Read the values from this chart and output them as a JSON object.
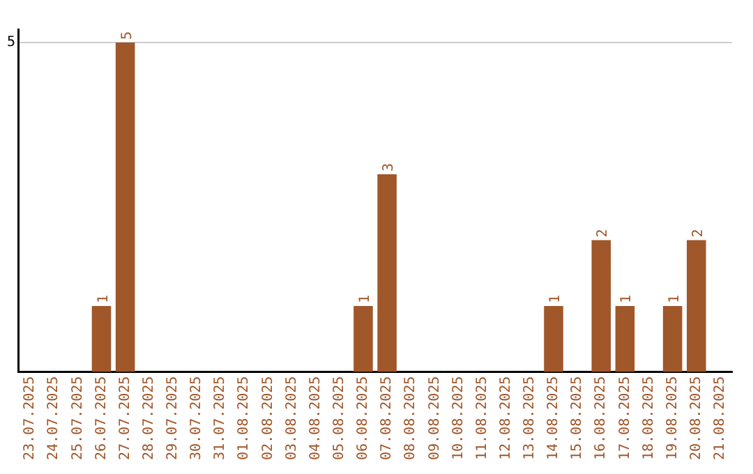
{
  "chart_data": {
    "type": "bar",
    "categories": [
      "23.07.2025",
      "24.07.2025",
      "25.07.2025",
      "26.07.2025",
      "27.07.2025",
      "28.07.2025",
      "29.07.2025",
      "30.07.2025",
      "31.07.2025",
      "01.08.2025",
      "02.08.2025",
      "03.08.2025",
      "04.08.2025",
      "05.08.2025",
      "06.08.2025",
      "07.08.2025",
      "08.08.2025",
      "09.08.2025",
      "10.08.2025",
      "11.08.2025",
      "12.08.2025",
      "13.08.2025",
      "14.08.2025",
      "15.08.2025",
      "16.08.2025",
      "17.08.2025",
      "18.08.2025",
      "19.08.2025",
      "20.08.2025",
      "21.08.2025"
    ],
    "values": [
      null,
      null,
      null,
      1,
      5,
      null,
      null,
      null,
      null,
      null,
      null,
      null,
      null,
      null,
      1,
      3,
      null,
      null,
      null,
      null,
      null,
      null,
      1,
      null,
      2,
      1,
      null,
      1,
      2,
      null
    ],
    "color": "#a0572a",
    "ylim": [
      0,
      5.2
    ],
    "yticks": [
      5
    ],
    "grid": "y",
    "data_labels": true,
    "legend": false
  }
}
